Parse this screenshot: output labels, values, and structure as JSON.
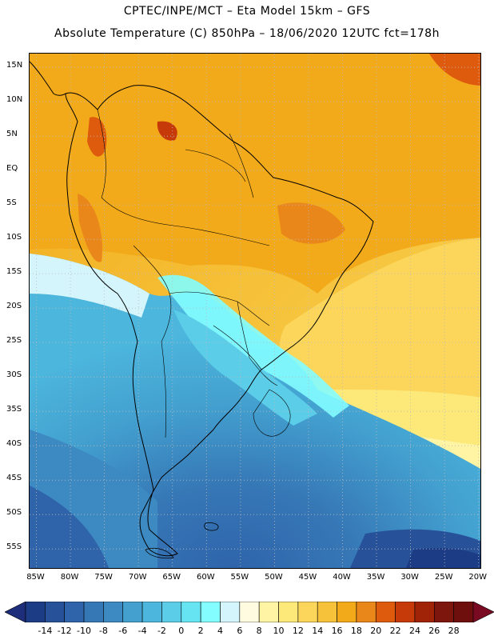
{
  "title_line1": "CPTEC/INPE/MCT –  Eta Model 15km – GFS",
  "title_line2": "Absolute Temperature (C) 850hPa – 18/06/2020 12UTC fct=178h",
  "lat_ticks": [
    "15N",
    "10N",
    "5N",
    "EQ",
    "5S",
    "10S",
    "15S",
    "20S",
    "25S",
    "30S",
    "35S",
    "40S",
    "45S",
    "50S",
    "55S"
  ],
  "lon_ticks": [
    "85W",
    "80W",
    "75W",
    "70W",
    "65W",
    "60W",
    "55W",
    "50W",
    "45W",
    "40W",
    "35W",
    "30W",
    "25W",
    "20W"
  ],
  "colorbar_labels": [
    "-14",
    "-12",
    "-10",
    "-8",
    "-6",
    "-4",
    "-2",
    "0",
    "2",
    "4",
    "6",
    "8",
    "10",
    "12",
    "14",
    "16",
    "18",
    "20",
    "22",
    "24",
    "26",
    "28"
  ],
  "colorbar_colors": [
    "#1c3d86",
    "#27529a",
    "#2f64ab",
    "#3677b6",
    "#3d8ac3",
    "#43a0cf",
    "#4cb6dd",
    "#5bcde9",
    "#67e4f2",
    "#83fdff",
    "#d3f5fb",
    "#fffbe0",
    "#fff4a4",
    "#fde97a",
    "#fbd65b",
    "#f6c23a",
    "#f2aa1a",
    "#e9871a",
    "#de5b0e",
    "#c63a0a",
    "#a02308",
    "#7d160c",
    "#6e0f0e"
  ],
  "under_color": "#1e2e7a",
  "over_color": "#7a0a22",
  "map_axes": {
    "lon_min": -86,
    "lon_max": -19.5,
    "lat_min": -58,
    "lat_max": 17
  }
}
